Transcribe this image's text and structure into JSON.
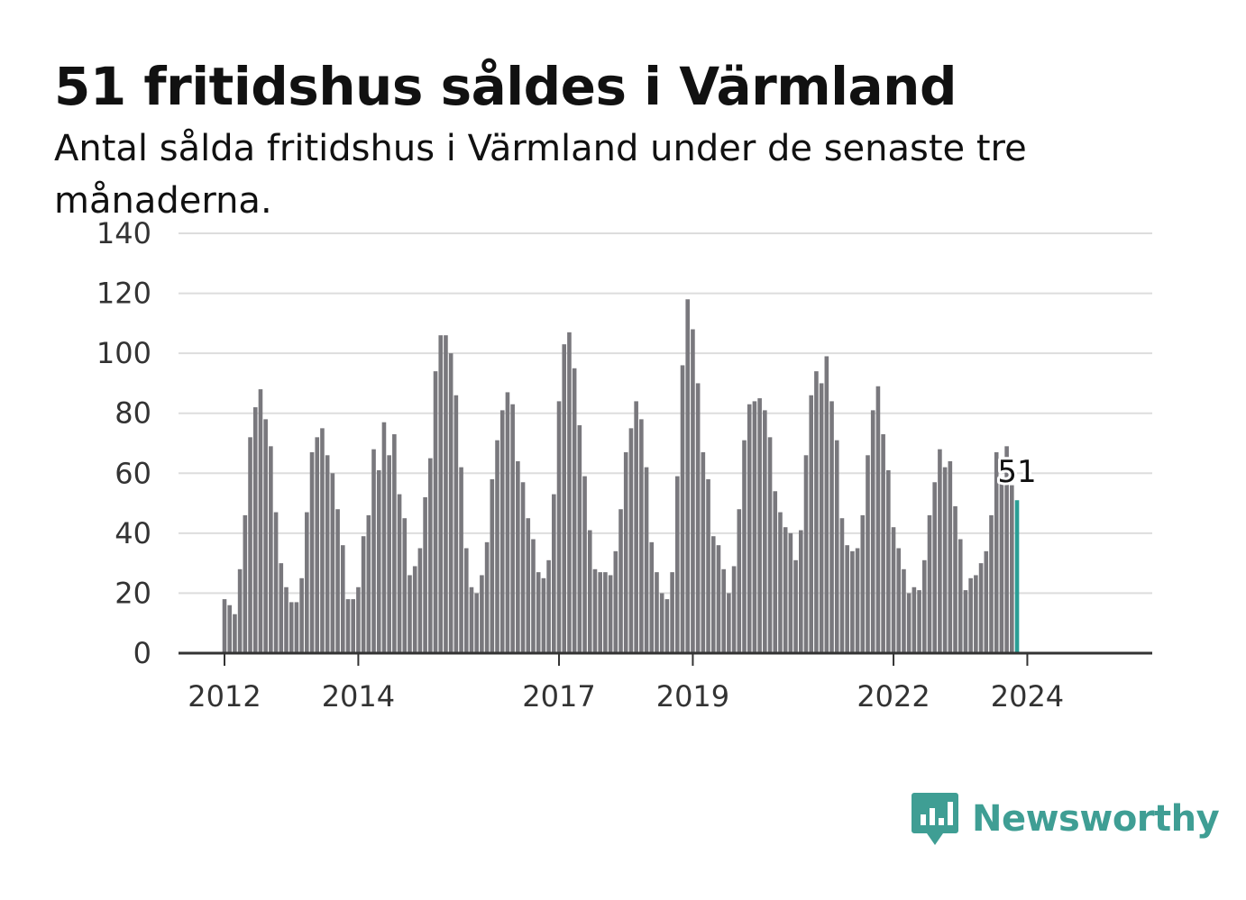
{
  "title": "51 fritidshus såldes i Värmland",
  "subtitle": "Antal sålda fritidshus i Värmland under de senaste tre månaderna.",
  "brand": {
    "name": "Newsworthy",
    "color": "#3f9e94",
    "icon": "newsworthy-logo-icon"
  },
  "colors": {
    "bar": "#79787d",
    "highlight": "#2a9d95",
    "grid": "#dddddd",
    "axis": "#333333"
  },
  "chart_data": {
    "type": "bar",
    "title": "51 fritidshus såldes i Värmland",
    "subtitle": "Antal sålda fritidshus i Värmland under de senaste tre månaderna.",
    "xlabel": "",
    "ylabel": "",
    "ylim": [
      0,
      140
    ],
    "yticks": [
      0,
      20,
      40,
      60,
      80,
      100,
      120,
      140
    ],
    "xticks": [
      "2012",
      "2014",
      "2017",
      "2019",
      "2022",
      "2024"
    ],
    "xtick_index": [
      0,
      26,
      65,
      91,
      130,
      156
    ],
    "grid": true,
    "highlight_last": true,
    "last_value_label": "51",
    "values": [
      18,
      16,
      13,
      28,
      46,
      72,
      82,
      88,
      78,
      69,
      47,
      30,
      22,
      17,
      17,
      25,
      47,
      67,
      72,
      75,
      66,
      60,
      48,
      36,
      18,
      18,
      22,
      39,
      46,
      68,
      61,
      77,
      66,
      73,
      53,
      45,
      26,
      29,
      35,
      52,
      65,
      94,
      106,
      106,
      100,
      86,
      62,
      35,
      22,
      20,
      26,
      37,
      58,
      71,
      81,
      87,
      83,
      64,
      57,
      45,
      38,
      27,
      25,
      31,
      53,
      84,
      103,
      107,
      95,
      76,
      59,
      41,
      28,
      27,
      27,
      26,
      34,
      48,
      67,
      75,
      84,
      78,
      62,
      37,
      27,
      20,
      18,
      27,
      59,
      96,
      118,
      108,
      90,
      67,
      58,
      39,
      36,
      28,
      20,
      29,
      48,
      71,
      83,
      84,
      85,
      81,
      72,
      54,
      47,
      42,
      40,
      31,
      41,
      66,
      86,
      94,
      90,
      99,
      84,
      71,
      45,
      36,
      34,
      35,
      46,
      66,
      81,
      89,
      73,
      61,
      42,
      35,
      28,
      20,
      22,
      21,
      31,
      46,
      57,
      68,
      62,
      64,
      49,
      38,
      21,
      25,
      26,
      30,
      34,
      46,
      67,
      58,
      69,
      56,
      51
    ]
  }
}
